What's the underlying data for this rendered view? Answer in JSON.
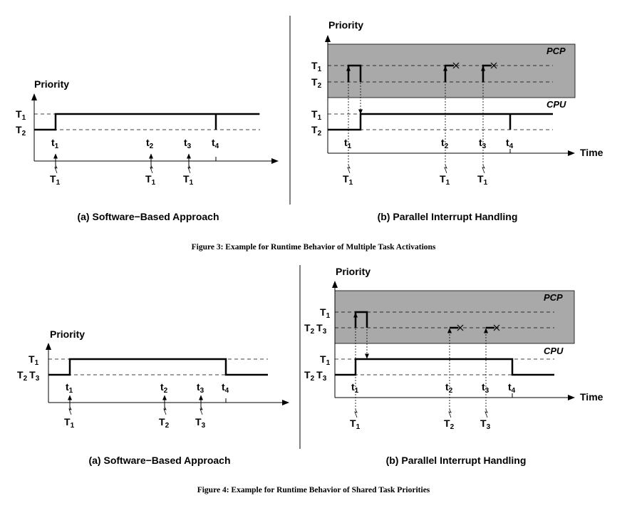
{
  "figure3": {
    "caption": "Figure 3: Example for Runtime Behavior of Multiple Task Activations",
    "left": {
      "subcaption": "(a) Software−Based Approach",
      "axis_label": "Priority",
      "levels": [
        {
          "name": "T",
          "sub": "1"
        },
        {
          "name": "T",
          "sub": "2"
        }
      ],
      "times": [
        {
          "name": "t",
          "sub": "1"
        },
        {
          "name": "t",
          "sub": "2"
        },
        {
          "name": "t",
          "sub": "3"
        },
        {
          "name": "t",
          "sub": "4"
        }
      ],
      "activations": [
        {
          "name": "T",
          "sub": "1"
        },
        {
          "name": "T",
          "sub": "1"
        },
        {
          "name": "T",
          "sub": "1"
        }
      ]
    },
    "right": {
      "subcaption": "(b) Parallel Interrupt Handling",
      "axis_label": "Priority",
      "time_label": "Time",
      "pcp_label": "PCP",
      "cpu_label": "CPU",
      "pcp_levels": [
        {
          "name": "T",
          "sub": "1"
        },
        {
          "name": "T",
          "sub": "2"
        }
      ],
      "cpu_levels": [
        {
          "name": "T",
          "sub": "1"
        },
        {
          "name": "T",
          "sub": "2"
        }
      ],
      "times": [
        {
          "name": "t",
          "sub": "1"
        },
        {
          "name": "t",
          "sub": "2"
        },
        {
          "name": "t",
          "sub": "3"
        },
        {
          "name": "t",
          "sub": "4"
        }
      ],
      "activations": [
        {
          "name": "T",
          "sub": "1"
        },
        {
          "name": "T",
          "sub": "1"
        },
        {
          "name": "T",
          "sub": "1"
        }
      ]
    }
  },
  "figure4": {
    "caption": "Figure 4: Example for Runtime Behavior of Shared Task Priorities",
    "left": {
      "subcaption": "(a) Software−Based Approach",
      "axis_label": "Priority",
      "levels": [
        {
          "name": "T",
          "sub": "1"
        },
        {
          "name": "T",
          "sub": "2",
          "name2": "T",
          "sub2": "3"
        }
      ],
      "times": [
        {
          "name": "t",
          "sub": "1"
        },
        {
          "name": "t",
          "sub": "2"
        },
        {
          "name": "t",
          "sub": "3"
        },
        {
          "name": "t",
          "sub": "4"
        }
      ],
      "activations": [
        {
          "name": "T",
          "sub": "1"
        },
        {
          "name": "T",
          "sub": "2"
        },
        {
          "name": "T",
          "sub": "3"
        }
      ]
    },
    "right": {
      "subcaption": "(b) Parallel Interrupt Handling",
      "axis_label": "Priority",
      "time_label": "Time",
      "pcp_label": "PCP",
      "cpu_label": "CPU",
      "pcp_levels": [
        {
          "name": "T",
          "sub": "1"
        },
        {
          "name": "T",
          "sub": "2",
          "name2": "T",
          "sub2": "3"
        }
      ],
      "cpu_levels": [
        {
          "name": "T",
          "sub": "1"
        },
        {
          "name": "T",
          "sub": "2",
          "name2": "T",
          "sub2": "3"
        }
      ],
      "times": [
        {
          "name": "t",
          "sub": "1"
        },
        {
          "name": "t",
          "sub": "2"
        },
        {
          "name": "t",
          "sub": "3"
        },
        {
          "name": "t",
          "sub": "4"
        }
      ],
      "activations": [
        {
          "name": "T",
          "sub": "1"
        },
        {
          "name": "T",
          "sub": "2"
        },
        {
          "name": "T",
          "sub": "3"
        }
      ]
    }
  }
}
